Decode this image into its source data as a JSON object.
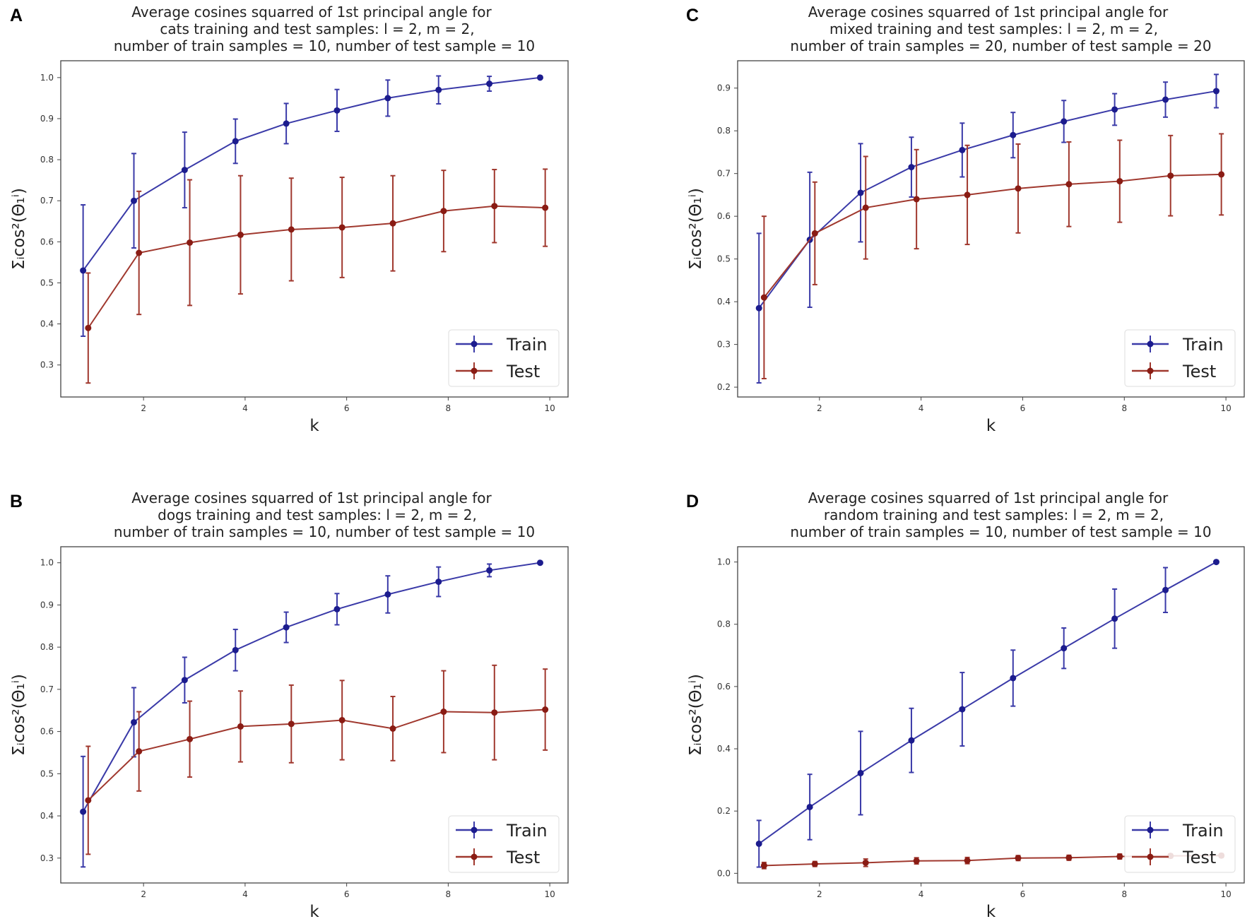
{
  "colors": {
    "train": "#1c1c8e",
    "train_line": "#3a3aa8",
    "test": "#8a1c14",
    "test_line": "#a0382e"
  },
  "chart_data": [
    {
      "panel": "A",
      "type": "line",
      "title": [
        "Average cosines squarred of 1st principal angle for",
        "cats training and test samples: l = 2, m = 2,",
        "number of train samples = 10, number of test sample = 10"
      ],
      "xlabel": "k",
      "ylabel": "Σᵢcos²(Θ₁ⁱ)",
      "xlim": [
        0.37,
        10.36
      ],
      "ylim": [
        0.222,
        1.041
      ],
      "xticks": [
        "2",
        "4",
        "6",
        "8",
        "10"
      ],
      "yticks": [
        "0.3",
        "0.4",
        "0.5",
        "0.6",
        "0.7",
        "0.8",
        "0.9",
        "1.0"
      ],
      "legend": {
        "placement": "lower-right",
        "entries": [
          "Train",
          "Test"
        ]
      },
      "series": [
        {
          "name": "Train",
          "x": [
            0.81,
            1.81,
            2.81,
            3.81,
            4.81,
            5.81,
            6.81,
            7.81,
            8.81,
            9.81
          ],
          "values": [
            0.53,
            0.7,
            0.775,
            0.845,
            0.888,
            0.92,
            0.95,
            0.97,
            0.985,
            1.0
          ],
          "err": [
            0.16,
            0.115,
            0.092,
            0.054,
            0.049,
            0.051,
            0.044,
            0.034,
            0.018,
            0.0
          ]
        },
        {
          "name": "Test",
          "x": [
            0.91,
            1.91,
            2.91,
            3.91,
            4.91,
            5.91,
            6.91,
            7.91,
            8.91,
            9.91
          ],
          "values": [
            0.39,
            0.573,
            0.598,
            0.617,
            0.63,
            0.635,
            0.645,
            0.675,
            0.687,
            0.683
          ],
          "err": [
            0.134,
            0.15,
            0.153,
            0.144,
            0.125,
            0.122,
            0.116,
            0.099,
            0.089,
            0.094
          ]
        }
      ]
    },
    {
      "panel": "C",
      "type": "line",
      "title": [
        "Average cosines squarred of 1st principal angle for",
        "mixed training and test samples: l = 2, m = 2,",
        "number of train samples = 20, number of test sample = 20"
      ],
      "xlabel": "k",
      "ylabel": "Σᵢcos²(Θ₁ⁱ)",
      "xlim": [
        0.39,
        10.36
      ],
      "ylim": [
        0.177,
        0.964
      ],
      "xticks": [
        "2",
        "4",
        "6",
        "8",
        "10"
      ],
      "yticks": [
        "0.2",
        "0.3",
        "0.4",
        "0.5",
        "0.6",
        "0.7",
        "0.8",
        "0.9"
      ],
      "legend": {
        "placement": "lower-right",
        "entries": [
          "Train",
          "Test"
        ]
      },
      "series": [
        {
          "name": "Train",
          "x": [
            0.81,
            1.81,
            2.81,
            3.81,
            4.81,
            5.81,
            6.81,
            7.81,
            8.81,
            9.81
          ],
          "values": [
            0.385,
            0.545,
            0.655,
            0.715,
            0.755,
            0.79,
            0.822,
            0.85,
            0.873,
            0.893
          ],
          "err": [
            0.175,
            0.158,
            0.115,
            0.07,
            0.063,
            0.053,
            0.049,
            0.037,
            0.041,
            0.039
          ]
        },
        {
          "name": "Test",
          "x": [
            0.91,
            1.91,
            2.91,
            3.91,
            4.91,
            5.91,
            6.91,
            7.91,
            8.91,
            9.91
          ],
          "values": [
            0.41,
            0.56,
            0.62,
            0.64,
            0.65,
            0.665,
            0.675,
            0.682,
            0.695,
            0.698
          ],
          "err": [
            0.19,
            0.12,
            0.12,
            0.116,
            0.116,
            0.104,
            0.099,
            0.096,
            0.094,
            0.095
          ]
        }
      ]
    },
    {
      "panel": "B",
      "type": "line",
      "title": [
        "Average cosines squarred of 1st principal angle for",
        "dogs training and test samples: l = 2, m = 2,",
        "number of train samples = 10, number of test sample = 10"
      ],
      "xlabel": "k",
      "ylabel": "Σᵢcos²(Θ₁ⁱ)",
      "xlim": [
        0.37,
        10.36
      ],
      "ylim": [
        0.241,
        1.038
      ],
      "xticks": [
        "2",
        "4",
        "6",
        "8",
        "10"
      ],
      "yticks": [
        "0.3",
        "0.4",
        "0.5",
        "0.6",
        "0.7",
        "0.8",
        "0.9",
        "1.0"
      ],
      "legend": {
        "placement": "lower-right",
        "entries": [
          "Train",
          "Test"
        ]
      },
      "series": [
        {
          "name": "Train",
          "x": [
            0.81,
            1.81,
            2.81,
            3.81,
            4.81,
            5.81,
            6.81,
            7.81,
            8.81,
            9.81
          ],
          "values": [
            0.41,
            0.622,
            0.722,
            0.793,
            0.847,
            0.89,
            0.925,
            0.955,
            0.982,
            1.0
          ],
          "err": [
            0.131,
            0.082,
            0.054,
            0.049,
            0.036,
            0.037,
            0.044,
            0.035,
            0.015,
            0.0
          ]
        },
        {
          "name": "Test",
          "x": [
            0.91,
            1.91,
            2.91,
            3.91,
            4.91,
            5.91,
            6.91,
            7.91,
            8.91,
            9.91
          ],
          "values": [
            0.437,
            0.553,
            0.582,
            0.612,
            0.618,
            0.627,
            0.607,
            0.647,
            0.645,
            0.652
          ],
          "err": [
            0.128,
            0.094,
            0.09,
            0.084,
            0.092,
            0.094,
            0.076,
            0.097,
            0.112,
            0.096
          ]
        }
      ]
    },
    {
      "panel": "D",
      "type": "line",
      "title": [
        "Average cosines squarred of 1st principal angle for",
        "random training and test samples: l = 2, m = 2,",
        "number of train samples = 10, number of test sample = 10"
      ],
      "xlabel": "k",
      "ylabel": "Σᵢcos²(Θ₁ⁱ)",
      "xlim": [
        0.39,
        10.36
      ],
      "ylim": [
        -0.031,
        1.049
      ],
      "xticks": [
        "2",
        "4",
        "6",
        "8",
        "10"
      ],
      "yticks": [
        "0.0",
        "0.2",
        "0.4",
        "0.6",
        "0.8",
        "1.0"
      ],
      "legend": {
        "placement": "lower-right",
        "entries": [
          "Train",
          "Test"
        ]
      },
      "series": [
        {
          "name": "Train",
          "x": [
            0.81,
            1.81,
            2.81,
            3.81,
            4.81,
            5.81,
            6.81,
            7.81,
            8.81,
            9.81
          ],
          "values": [
            0.095,
            0.213,
            0.322,
            0.427,
            0.527,
            0.627,
            0.723,
            0.818,
            0.91,
            1.0
          ],
          "err": [
            0.075,
            0.105,
            0.134,
            0.103,
            0.118,
            0.09,
            0.065,
            0.095,
            0.072,
            0.0
          ]
        },
        {
          "name": "Test",
          "x": [
            0.91,
            1.91,
            2.91,
            3.91,
            4.91,
            5.91,
            6.91,
            7.91,
            8.91,
            9.91
          ],
          "values": [
            0.025,
            0.03,
            0.034,
            0.04,
            0.041,
            0.049,
            0.05,
            0.054,
            0.056,
            0.057
          ],
          "err": [
            0.01,
            0.008,
            0.012,
            0.01,
            0.01,
            0.008,
            0.008,
            0.008,
            0.006,
            0.006
          ]
        }
      ]
    }
  ]
}
